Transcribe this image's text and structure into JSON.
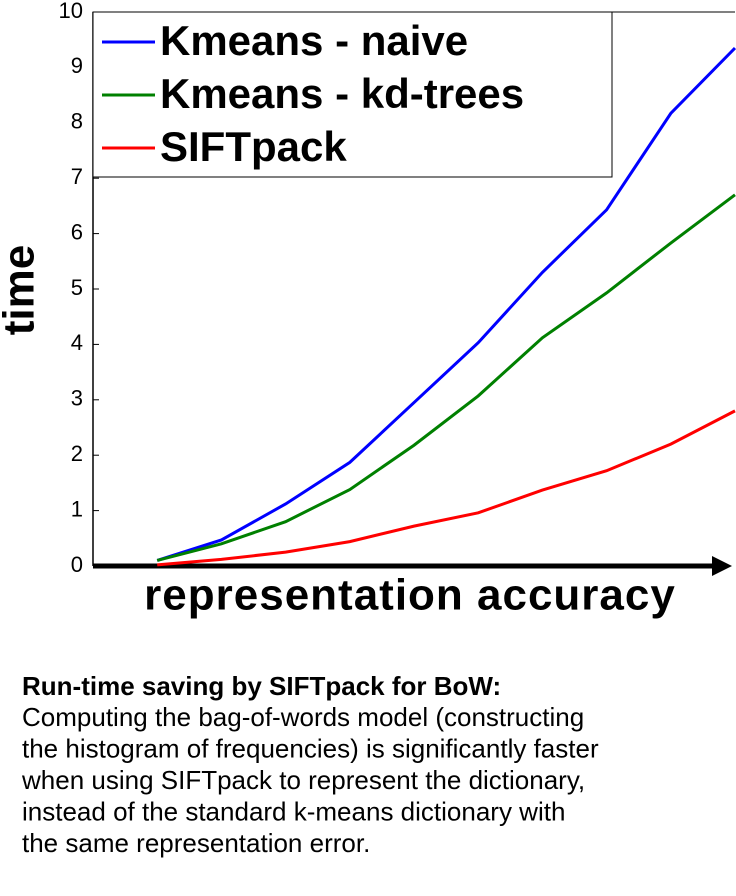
{
  "chart_data": {
    "type": "line",
    "x": [
      1,
      2,
      3,
      4,
      5,
      6,
      7,
      8,
      9,
      10
    ],
    "xlim": [
      0,
      10
    ],
    "ylim": [
      0,
      10
    ],
    "yticks": [
      0,
      1,
      2,
      3,
      4,
      5,
      6,
      7,
      8,
      9,
      10
    ],
    "ylabel": "time",
    "xlabel": "representation accuracy",
    "legend": "upper left",
    "series": [
      {
        "name": "Kmeans - naive",
        "color": "#0000ff",
        "values": [
          0.1,
          0.47,
          1.12,
          1.87,
          2.95,
          4.03,
          5.3,
          6.43,
          8.17,
          9.35
        ]
      },
      {
        "name": "Kmeans - kd-trees",
        "color": "#008000",
        "values": [
          0.1,
          0.4,
          0.8,
          1.38,
          2.18,
          3.07,
          4.12,
          4.93,
          5.83,
          6.7
        ]
      },
      {
        "name": "SIFTpack",
        "color": "#ff0000",
        "values": [
          0.02,
          0.12,
          0.25,
          0.44,
          0.72,
          0.96,
          1.37,
          1.72,
          2.2,
          2.8
        ]
      }
    ]
  },
  "caption": {
    "title": "Run-time saving by SIFTpack for BoW:",
    "lines": [
      "Computing the bag-of-words model (constructing",
      "the histogram of frequencies) is significantly faster",
      "when using SIFTpack to represent the dictionary,",
      "instead of the standard k-means dictionary with",
      "the same representation error."
    ]
  }
}
